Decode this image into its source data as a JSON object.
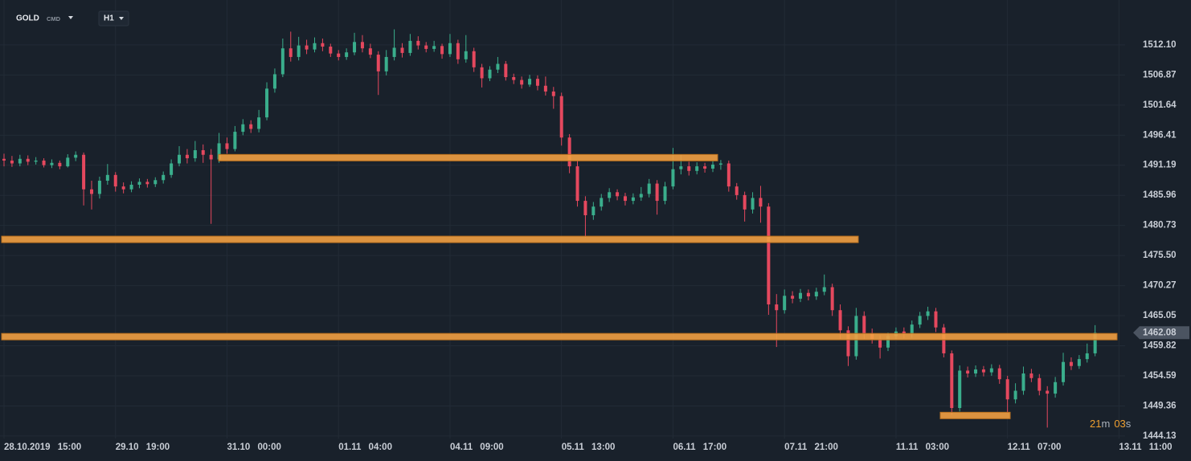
{
  "header": {
    "symbol": "GOLD",
    "market": "CMD",
    "timeframe": "H1"
  },
  "chart_data": {
    "type": "candlestick",
    "categories": [
      "28.10.2019 15:00",
      null,
      null,
      null,
      null,
      null,
      null,
      null,
      null,
      null,
      null,
      null,
      null,
      null,
      "29.10 19:00",
      null,
      null,
      null,
      null,
      null,
      null,
      null,
      null,
      null,
      null,
      null,
      null,
      null,
      "31.10 00:00",
      null,
      null,
      null,
      null,
      null,
      null,
      null,
      null,
      null,
      null,
      null,
      null,
      null,
      "01.11 04:00",
      null,
      null,
      null,
      null,
      null,
      null,
      null,
      null,
      null,
      null,
      null,
      null,
      null,
      "04.11 09:00",
      null,
      null,
      null,
      null,
      null,
      null,
      null,
      null,
      null,
      null,
      null,
      null,
      null,
      "05.11 13:00",
      null,
      null,
      null,
      null,
      null,
      null,
      null,
      null,
      null,
      null,
      null,
      null,
      null,
      "06.11 17:00",
      null,
      null,
      null,
      null,
      null,
      null,
      null,
      null,
      null,
      null,
      null,
      null,
      null,
      "07.11 21:00",
      null,
      null,
      null,
      null,
      null,
      null,
      null,
      null,
      null,
      null,
      null,
      null,
      null,
      "11.11 03:00",
      null,
      null,
      null,
      null,
      null,
      null,
      null,
      null,
      null,
      null,
      null,
      null,
      null,
      "12.11 07:00",
      null,
      null,
      null,
      null,
      null,
      null,
      null,
      null,
      null,
      null,
      null,
      null,
      null,
      "13.11 11:00"
    ],
    "open": [
      1492.3,
      1492.0,
      1491.5,
      1492.3,
      1491.8,
      1492.0,
      1491.2,
      1491.6,
      1491.0,
      1492.5,
      1493.0,
      1487.0,
      1486.2,
      1488.5,
      1489.5,
      1487.5,
      1487.0,
      1487.8,
      1488.3,
      1487.9,
      1488.6,
      1489.5,
      1491.5,
      1493.0,
      1492.4,
      1493.8,
      1493.0,
      1492.2,
      1495.0,
      1494.0,
      1497.0,
      1498.3,
      1497.5,
      1499.5,
      1504.5,
      1507.0,
      1511.5,
      1510.0,
      1512.0,
      1511.3,
      1512.4,
      1511.8,
      1510.6,
      1510.0,
      1510.8,
      1512.6,
      1511.5,
      1510.4,
      1507.5,
      1510.0,
      1511.6,
      1510.7,
      1512.8,
      1512.0,
      1511.4,
      1511.9,
      1510.5,
      1512.4,
      1509.6,
      1511.0,
      1508.2,
      1506.3,
      1507.8,
      1508.8,
      1506.5,
      1506.0,
      1505.2,
      1506.2,
      1505.0,
      1504.0,
      1503.2,
      1496.0,
      1491.0,
      1485.0,
      1482.5,
      1484.0,
      1485.5,
      1486.5,
      1485.8,
      1485.0,
      1485.6,
      1486.2,
      1488.0,
      1485.0,
      1487.5,
      1490.5,
      1491.0,
      1490.2,
      1491.0,
      1490.6,
      1491.3,
      1491.5,
      1487.5,
      1486.0,
      1483.5,
      1485.5,
      1484.0,
      1467.0,
      1466.0,
      1468.5,
      1468.0,
      1469.0,
      1468.4,
      1469.2,
      1470.0,
      1466.0,
      1462.5,
      1458.0,
      1465.0,
      1462.0,
      1461.0,
      1459.5,
      1461.5,
      1462.3,
      1461.8,
      1463.5,
      1465.0,
      1465.8,
      1463.0,
      1458.5,
      1449.0,
      1455.5,
      1455.0,
      1455.7,
      1455.2,
      1455.9,
      1454.0,
      1450.5,
      1452.0,
      1455.0,
      1454.2,
      1452.0,
      1451.5,
      1453.5,
      1457.0,
      1456.3,
      1457.5,
      1458.5,
      null,
      null,
      null
    ],
    "high": [
      1493.2,
      1492.8,
      1493.0,
      1492.9,
      1492.6,
      1492.4,
      1492.2,
      1492.0,
      1493.1,
      1493.6,
      1493.4,
      1488.5,
      1489.2,
      1491.4,
      1490.0,
      1488.2,
      1488.4,
      1488.9,
      1488.8,
      1489.1,
      1490.1,
      1492.2,
      1494.5,
      1494.0,
      1495.4,
      1494.8,
      1494.0,
      1496.8,
      1496.0,
      1498.0,
      1499.2,
      1499.0,
      1500.8,
      1505.6,
      1508.0,
      1513.2,
      1514.4,
      1513.5,
      1513.0,
      1513.4,
      1513.2,
      1512.3,
      1511.2,
      1511.5,
      1514.2,
      1513.8,
      1512.3,
      1511.0,
      1511.2,
      1514.8,
      1512.4,
      1514.0,
      1513.6,
      1512.6,
      1512.8,
      1512.3,
      1514.0,
      1513.0,
      1513.8,
      1511.6,
      1508.8,
      1508.4,
      1510.0,
      1509.3,
      1507.1,
      1506.6,
      1506.9,
      1506.8,
      1506.6,
      1504.8,
      1503.8,
      1496.6,
      1492.0,
      1485.8,
      1484.8,
      1486.2,
      1487.2,
      1487.0,
      1486.4,
      1486.3,
      1487.4,
      1488.8,
      1488.6,
      1488.3,
      1494.2,
      1493.0,
      1491.8,
      1491.7,
      1491.6,
      1491.9,
      1492.1,
      1492.0,
      1488.1,
      1486.6,
      1486.5,
      1487.6,
      1484.6,
      1468.8,
      1469.6,
      1469.3,
      1469.7,
      1469.6,
      1469.9,
      1472.2,
      1470.6,
      1467.0,
      1463.2,
      1466.4,
      1465.8,
      1462.8,
      1461.6,
      1462.1,
      1463.0,
      1463.0,
      1464.2,
      1465.7,
      1466.6,
      1466.4,
      1463.6,
      1459.0,
      1456.4,
      1456.2,
      1456.4,
      1456.3,
      1456.6,
      1456.5,
      1454.6,
      1453.3,
      1456.2,
      1455.8,
      1454.9,
      1452.8,
      1454.4,
      1458.6,
      1457.8,
      1458.2,
      1460.2,
      1463.4,
      null,
      null,
      null
    ],
    "low": [
      1491.0,
      1490.9,
      1491.0,
      1491.2,
      1491.3,
      1490.8,
      1490.7,
      1490.5,
      1490.8,
      1491.9,
      1484.2,
      1483.5,
      1485.4,
      1487.8,
      1486.6,
      1486.3,
      1486.5,
      1487.2,
      1487.3,
      1487.4,
      1488.0,
      1489.0,
      1491.0,
      1491.5,
      1491.8,
      1491.6,
      1481.0,
      1491.6,
      1493.2,
      1493.6,
      1496.4,
      1496.8,
      1496.9,
      1499.0,
      1503.8,
      1506.5,
      1509.2,
      1509.4,
      1510.5,
      1510.8,
      1511.0,
      1510.0,
      1509.4,
      1509.5,
      1510.3,
      1510.8,
      1509.8,
      1503.4,
      1506.8,
      1509.4,
      1509.9,
      1510.2,
      1511.3,
      1510.8,
      1510.9,
      1509.7,
      1510.0,
      1508.8,
      1509.0,
      1507.4,
      1504.7,
      1505.8,
      1507.2,
      1505.9,
      1505.3,
      1504.5,
      1504.8,
      1504.2,
      1503.3,
      1501.0,
      1494.6,
      1489.8,
      1484.0,
      1478.6,
      1481.7,
      1483.3,
      1484.8,
      1485.1,
      1484.2,
      1484.4,
      1485.0,
      1485.6,
      1482.6,
      1484.4,
      1487.0,
      1489.6,
      1489.4,
      1489.6,
      1489.9,
      1490.0,
      1490.4,
      1486.6,
      1485.2,
      1481.4,
      1482.8,
      1481.2,
      1465.2,
      1459.6,
      1465.4,
      1467.2,
      1467.4,
      1467.7,
      1467.8,
      1468.6,
      1465.0,
      1461.0,
      1456.3,
      1457.4,
      1461.0,
      1460.2,
      1457.6,
      1458.9,
      1460.9,
      1461.1,
      1461.2,
      1462.9,
      1464.3,
      1462.2,
      1457.8,
      1447.8,
      1448.4,
      1454.3,
      1454.4,
      1454.5,
      1454.6,
      1453.2,
      1448.3,
      1449.8,
      1451.3,
      1453.5,
      1451.2,
      1445.6,
      1450.8,
      1452.9,
      1455.6,
      1455.8,
      1456.9,
      1458.0,
      null,
      null,
      null
    ],
    "close": [
      1492.0,
      1491.5,
      1492.3,
      1491.8,
      1492.0,
      1491.2,
      1491.6,
      1491.0,
      1492.5,
      1493.0,
      1487.0,
      1486.2,
      1488.5,
      1489.5,
      1487.5,
      1487.0,
      1487.8,
      1488.3,
      1487.9,
      1488.6,
      1489.5,
      1491.5,
      1493.0,
      1492.4,
      1493.8,
      1493.0,
      1492.2,
      1495.0,
      1494.0,
      1497.0,
      1498.3,
      1497.5,
      1499.5,
      1504.5,
      1507.0,
      1511.5,
      1510.0,
      1512.0,
      1511.3,
      1512.4,
      1511.8,
      1510.6,
      1510.0,
      1510.8,
      1512.6,
      1511.5,
      1510.4,
      1507.5,
      1510.0,
      1511.6,
      1510.7,
      1512.8,
      1512.0,
      1511.4,
      1511.9,
      1510.5,
      1512.4,
      1509.6,
      1511.0,
      1508.2,
      1506.3,
      1507.8,
      1508.8,
      1506.5,
      1506.0,
      1505.2,
      1506.2,
      1505.0,
      1504.0,
      1503.2,
      1496.0,
      1491.0,
      1485.0,
      1482.5,
      1484.0,
      1485.5,
      1486.5,
      1485.8,
      1485.0,
      1485.6,
      1486.2,
      1488.0,
      1485.0,
      1487.5,
      1490.5,
      1491.0,
      1490.2,
      1491.0,
      1490.6,
      1491.3,
      1491.5,
      1487.5,
      1486.0,
      1483.5,
      1485.5,
      1484.0,
      1467.0,
      1466.0,
      1468.5,
      1468.0,
      1469.0,
      1468.4,
      1469.2,
      1470.0,
      1466.0,
      1462.5,
      1458.0,
      1465.0,
      1462.0,
      1461.0,
      1459.5,
      1461.5,
      1462.3,
      1461.8,
      1463.5,
      1465.0,
      1465.8,
      1463.0,
      1458.5,
      1449.0,
      1455.5,
      1455.0,
      1455.7,
      1455.2,
      1455.9,
      1454.0,
      1450.5,
      1452.0,
      1455.0,
      1454.2,
      1452.0,
      1451.5,
      1453.5,
      1457.0,
      1456.3,
      1457.5,
      1458.5,
      1462.08,
      null,
      null,
      null
    ],
    "up_color": "#3aae8c",
    "down_color": "#e5485e",
    "levels": [
      {
        "value": 1492.5,
        "color": "#f2a043"
      },
      {
        "value": 1478.3,
        "color": "#f2a043"
      },
      {
        "value": 1461.4,
        "color": "#f2a043"
      },
      {
        "value": 1447.7,
        "color": "#f2a043"
      }
    ],
    "ylim": [
      1443.7,
      1519.9
    ],
    "yticks": [
      {
        "value": 1512.1,
        "label": "1512.10"
      },
      1506.87,
      1501.64,
      1496.41,
      1491.19,
      1485.96,
      1480.73,
      {
        "value": 1475.5,
        "label": "1475.50"
      },
      1470.27,
      1465.05,
      1459.82,
      1454.59,
      1449.36,
      1444.13
    ],
    "grid": true,
    "countdown": [
      "21",
      "m",
      "03",
      "s"
    ]
  }
}
